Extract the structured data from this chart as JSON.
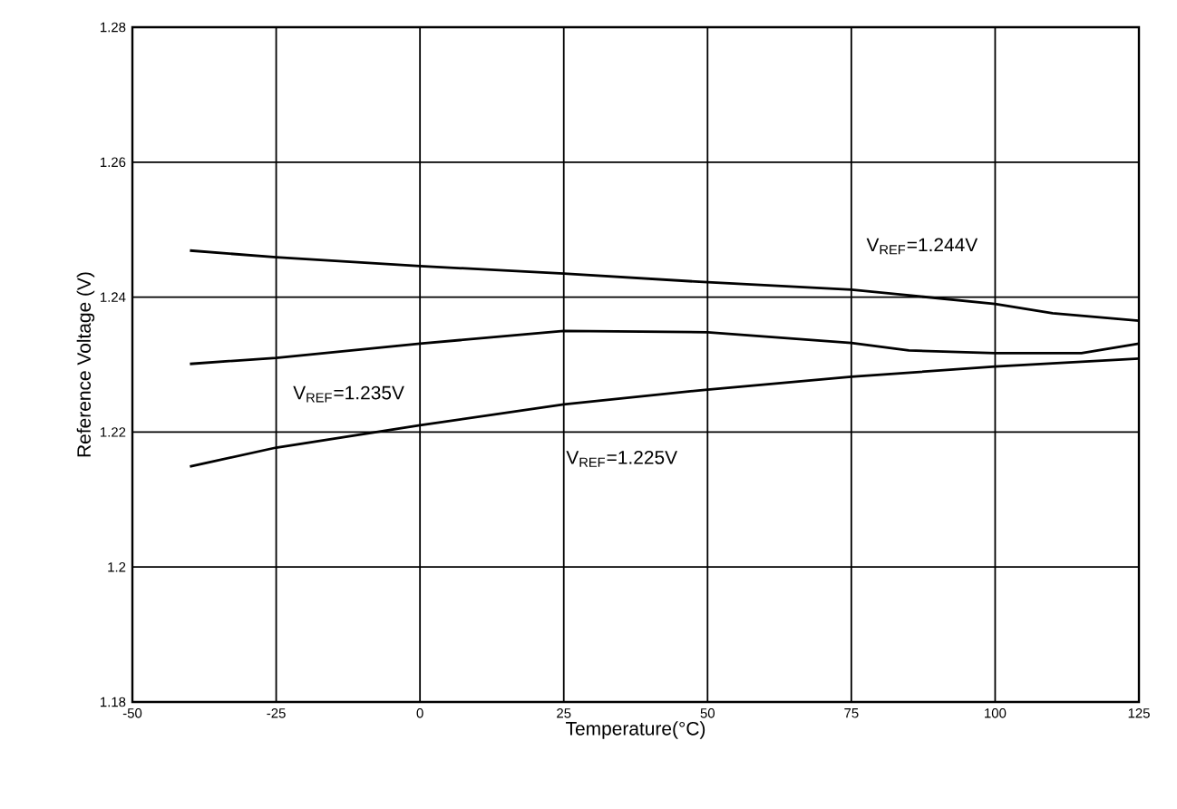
{
  "chart_data": {
    "type": "line",
    "xlabel": "Temperature(°C)",
    "ylabel": "Reference Voltage (V)",
    "xlim": [
      -50,
      125
    ],
    "xticks": [
      -50,
      -25,
      0,
      25,
      50,
      75,
      100,
      125
    ],
    "ylim": [
      1.18,
      1.28
    ],
    "yticks": [
      1.18,
      1.2,
      1.22,
      1.24,
      1.26,
      1.28
    ],
    "grid": true,
    "line_style": "solid",
    "series": [
      {
        "name": "V$_{REF}$=1.244V",
        "color": "#000000",
        "x": [
          -40,
          -25,
          0,
          25,
          50,
          75,
          100,
          110,
          125
        ],
        "values": [
          1.2469,
          1.2459,
          1.2446,
          1.2435,
          1.2422,
          1.2411,
          1.239,
          1.2376,
          1.2365
        ]
      },
      {
        "name": "V$_{REF}$=1.235V",
        "color": "#000000",
        "x": [
          -40,
          -25,
          0,
          25,
          50,
          75,
          85,
          100,
          115,
          125
        ],
        "values": [
          1.2301,
          1.231,
          1.2331,
          1.235,
          1.2348,
          1.2332,
          1.2321,
          1.2317,
          1.2317,
          1.2331
        ]
      },
      {
        "name": "V$_{REF}$=1.225V",
        "color": "#000000",
        "x": [
          -40,
          -25,
          0,
          25,
          50,
          75,
          100,
          125
        ],
        "values": [
          1.2149,
          1.2177,
          1.221,
          1.2241,
          1.2263,
          1.2282,
          1.2297,
          1.2309
        ]
      }
    ]
  }
}
